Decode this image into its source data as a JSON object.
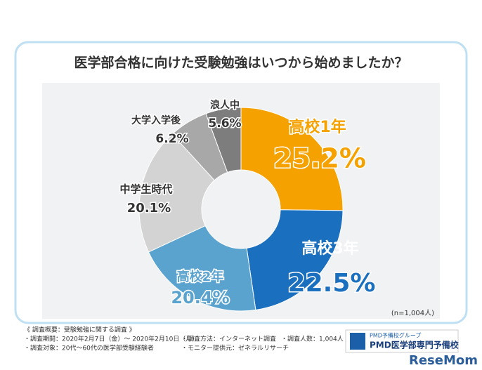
{
  "chart_data": {
    "type": "pie",
    "donut": true,
    "title": "医学部合格に向けた受験勉強はいつから始めましたか？",
    "categories": [
      "高校1年",
      "高校3年",
      "高校2年",
      "中学生時代",
      "大学入学後",
      "浪人中"
    ],
    "values": [
      25.2,
      22.5,
      20.4,
      20.1,
      6.2,
      5.6
    ],
    "value_labels": [
      "25.2%",
      "22.5%",
      "20.4%",
      "20.1%",
      "6.2%",
      "5.6%"
    ],
    "colors": [
      "#f5a100",
      "#1b6fbf",
      "#5ba3cf",
      "#d3d3d3",
      "#a8a8a8",
      "#7d7d7d"
    ],
    "note": "(n=1,004人)"
  },
  "footer": {
    "heading": "《 調査概要：受験勉強に関する調査 》",
    "items": [
      "・調査期間：2020年2月7日（金）～ 2020年2月10日（月）",
      "・調査方法：インターネット調査",
      "・調査人数：1,004人",
      "・調査対象：20代～60代の医学部受験経験者",
      "・モニター提供元：ゼネラルリサーチ"
    ],
    "logo_small": "PMD予備校グループ",
    "logo_main": "PMD医学部専門予備校",
    "watermark": "ReseMom"
  }
}
